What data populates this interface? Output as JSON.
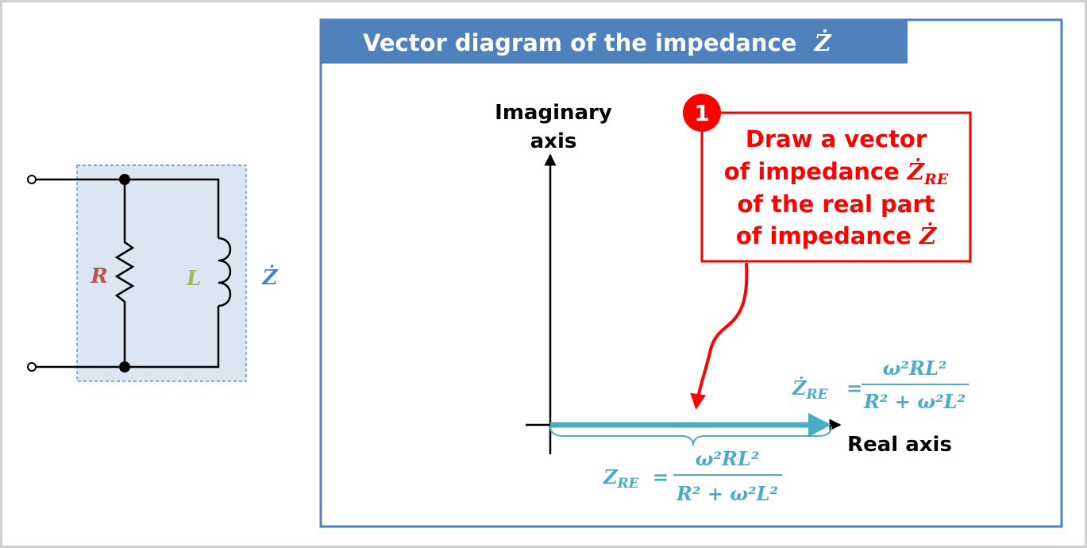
{
  "title": {
    "text": "Vector diagram of the impedance",
    "symbol": "Ż"
  },
  "circuit": {
    "resistor": "R",
    "inductor": "L",
    "impedance": "Ż"
  },
  "axes": {
    "imaginary": [
      "Imaginary",
      "axis"
    ],
    "real": "Real axis"
  },
  "callout": {
    "number": "1",
    "lines": [
      {
        "text": "Draw a vector"
      },
      {
        "text": "of impedance",
        "symbol": "Ż",
        "subscript": "RE"
      },
      {
        "text": "of the real part"
      },
      {
        "text": "of impedance",
        "symbol": "Ż"
      }
    ]
  },
  "vector_formula": {
    "symbol": "Ż",
    "subscript": "RE",
    "equals": "=",
    "numerator": "ω²RL²",
    "denominator": "R² + ω²L²"
  },
  "brace_formula": {
    "symbol": "Z",
    "subscript": "RE",
    "equals": "=",
    "numerator": "ω²RL²",
    "denominator": "R² + ω²L²"
  }
}
